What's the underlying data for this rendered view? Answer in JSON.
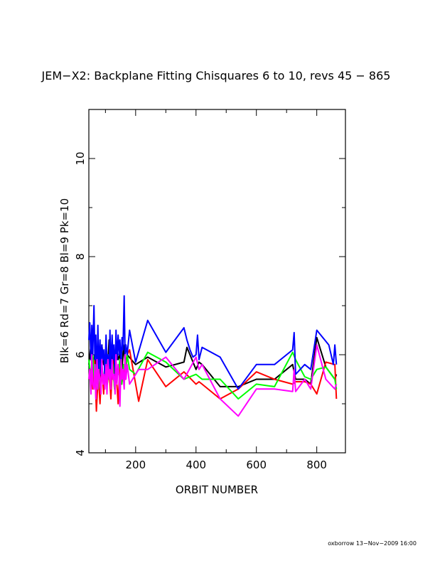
{
  "chart_data": {
    "type": "line",
    "title": "JEM−X2: Backplane Fitting Chisquares 6 to 10, revs 45 − 865",
    "xlabel": "ORBIT NUMBER",
    "ylabel": "Blk=6 Rd=7 Gr=8 Bl=9 Pk=10",
    "xlim": [
      45,
      895
    ],
    "ylim": [
      4,
      11
    ],
    "xticks": [
      200,
      400,
      600,
      800
    ],
    "yticks": [
      4,
      6,
      8,
      10
    ],
    "grid": false,
    "series": [
      {
        "color": "#000000",
        "x": [
          45,
          52,
          58,
          64,
          70,
          76,
          82,
          88,
          94,
          100,
          106,
          112,
          118,
          124,
          130,
          136,
          142,
          148,
          154,
          160,
          166,
          172,
          200,
          240,
          300,
          360,
          370,
          400,
          410,
          420,
          480,
          540,
          600,
          660,
          720,
          730,
          760,
          780,
          800,
          830,
          860,
          865
        ],
        "y": [
          5.8,
          6.2,
          5.6,
          6.0,
          5.7,
          6.1,
          5.5,
          6.2,
          5.8,
          6.0,
          5.6,
          6.3,
          5.7,
          6.1,
          5.5,
          6.2,
          5.9,
          6.0,
          5.6,
          6.2,
          5.8,
          6.0,
          5.8,
          5.95,
          5.75,
          5.85,
          6.15,
          5.7,
          5.85,
          5.8,
          5.35,
          5.35,
          5.5,
          5.5,
          5.8,
          5.5,
          5.5,
          5.4,
          6.35,
          5.75,
          5.5,
          5.6
        ]
      },
      {
        "color": "#ff0000",
        "x": [
          45,
          52,
          58,
          64,
          70,
          76,
          82,
          88,
          94,
          100,
          106,
          112,
          118,
          124,
          130,
          136,
          142,
          148,
          154,
          160,
          166,
          172,
          180,
          210,
          240,
          300,
          360,
          400,
          410,
          420,
          480,
          540,
          600,
          660,
          720,
          730,
          760,
          780,
          800,
          830,
          860,
          865
        ],
        "y": [
          5.5,
          5.7,
          5.3,
          5.9,
          4.85,
          5.6,
          5.0,
          5.8,
          5.2,
          6.0,
          5.4,
          5.7,
          5.1,
          5.9,
          5.3,
          5.6,
          5.0,
          5.8,
          5.4,
          5.7,
          5.5,
          6.0,
          6.1,
          5.05,
          5.9,
          5.35,
          5.65,
          5.4,
          5.45,
          5.4,
          5.1,
          5.3,
          5.65,
          5.5,
          5.4,
          5.45,
          5.45,
          5.4,
          5.2,
          5.85,
          5.8,
          5.1
        ]
      },
      {
        "color": "#00ff00",
        "x": [
          45,
          52,
          58,
          64,
          70,
          76,
          82,
          88,
          94,
          100,
          106,
          112,
          118,
          124,
          130,
          136,
          142,
          148,
          154,
          160,
          166,
          172,
          180,
          200,
          240,
          300,
          360,
          400,
          410,
          420,
          480,
          540,
          600,
          660,
          720,
          730,
          760,
          780,
          800,
          830,
          860,
          865
        ],
        "y": [
          5.9,
          5.5,
          6.0,
          5.4,
          5.8,
          5.3,
          6.1,
          5.6,
          5.5,
          5.9,
          5.4,
          6.0,
          5.5,
          5.8,
          5.3,
          5.7,
          5.6,
          5.9,
          5.4,
          5.8,
          5.6,
          6.0,
          5.7,
          5.6,
          6.05,
          5.85,
          5.5,
          5.6,
          5.55,
          5.5,
          5.5,
          5.1,
          5.4,
          5.35,
          6.05,
          5.9,
          5.55,
          5.5,
          5.7,
          5.75,
          5.5,
          5.3
        ]
      },
      {
        "color": "#0000ff",
        "x": [
          45,
          48,
          52,
          55,
          58,
          62,
          65,
          68,
          72,
          75,
          78,
          82,
          85,
          88,
          92,
          95,
          98,
          102,
          105,
          108,
          112,
          115,
          118,
          122,
          125,
          128,
          132,
          135,
          138,
          142,
          145,
          148,
          152,
          155,
          158,
          162,
          165,
          168,
          172,
          180,
          200,
          240,
          300,
          360,
          370,
          380,
          390,
          400,
          405,
          410,
          420,
          480,
          540,
          600,
          660,
          720,
          725,
          730,
          760,
          780,
          800,
          840,
          855,
          860,
          865
        ],
        "y": [
          6.3,
          6.65,
          5.9,
          6.6,
          6.0,
          7.0,
          5.9,
          6.4,
          5.5,
          6.6,
          5.7,
          6.3,
          5.6,
          6.2,
          5.9,
          6.1,
          5.5,
          6.4,
          5.8,
          6.0,
          5.6,
          6.5,
          5.7,
          6.4,
          5.9,
          6.2,
          5.6,
          6.5,
          5.9,
          6.4,
          6.0,
          6.3,
          5.8,
          6.35,
          6.1,
          7.2,
          6.0,
          6.2,
          6.0,
          6.5,
          5.85,
          6.7,
          6.05,
          6.55,
          6.3,
          6.1,
          5.95,
          6.0,
          6.4,
          5.9,
          6.15,
          5.95,
          5.3,
          5.8,
          5.8,
          6.1,
          6.45,
          5.6,
          5.8,
          5.7,
          6.5,
          6.2,
          5.8,
          6.2,
          5.8
        ]
      },
      {
        "color": "#ff00ff",
        "x": [
          45,
          48,
          52,
          55,
          58,
          62,
          65,
          68,
          72,
          75,
          78,
          82,
          85,
          88,
          92,
          95,
          98,
          102,
          105,
          108,
          112,
          115,
          118,
          122,
          125,
          128,
          132,
          135,
          138,
          142,
          145,
          148,
          152,
          155,
          158,
          162,
          165,
          168,
          172,
          180,
          210,
          240,
          300,
          360,
          400,
          410,
          420,
          480,
          540,
          600,
          660,
          720,
          725,
          730,
          760,
          780,
          800,
          830,
          860,
          865
        ],
        "y": [
          5.5,
          5.7,
          5.2,
          6.0,
          5.4,
          5.3,
          5.8,
          5.1,
          5.9,
          5.3,
          5.7,
          5.5,
          5.2,
          5.9,
          5.4,
          5.6,
          5.3,
          5.8,
          5.2,
          5.9,
          5.5,
          5.7,
          5.3,
          5.9,
          5.5,
          5.6,
          5.2,
          6.0,
          5.4,
          5.8,
          5.6,
          4.95,
          5.9,
          5.5,
          5.7,
          5.3,
          6.0,
          5.5,
          5.8,
          5.4,
          5.7,
          5.7,
          5.95,
          5.5,
          5.95,
          5.7,
          5.8,
          5.1,
          4.75,
          5.3,
          5.3,
          5.25,
          5.7,
          5.25,
          5.5,
          5.3,
          6.2,
          5.5,
          5.3,
          5.4
        ]
      }
    ]
  },
  "footer": "oxborrow 13−Nov−2009 16:00"
}
